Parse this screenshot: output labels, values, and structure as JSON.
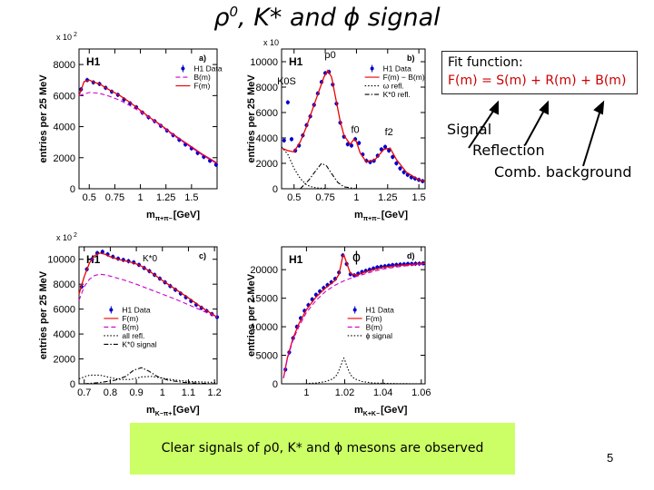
{
  "slide": {
    "title_main": "ρ",
    "title_sup": "0",
    "title_rest": ", K* and ϕ signal",
    "fit_function_label": "Fit function:",
    "fit_function_formula": "F(m) = S(m) + R(m) + B(m)",
    "term_signal": "Signal",
    "term_reflection": "Reflection",
    "term_background": "Comb. background",
    "conclusion": "Clear signals of ρ0, K* and ϕ mesons are observed",
    "page_number": "5"
  },
  "colors": {
    "data": "#0000cc",
    "fit": "#ee0000",
    "background": "#cc00cc",
    "reflection": "#000000",
    "conclusion_bg": "#ccff66",
    "formula": "#cc0000"
  },
  "chart_data": [
    {
      "id": "a",
      "type": "line",
      "panel_label": "a)",
      "experiment": "H1",
      "multiplier": "x 10",
      "multiplier_exp": "2",
      "ylabel": "entries per 25 MeV",
      "xlabel": "m",
      "xlabel_sub": "π+π−",
      "xlabel_unit": "[GeV]",
      "xlim": [
        0.4,
        1.75
      ],
      "ylim": [
        0,
        9000
      ],
      "xticks": [
        0.5,
        0.75,
        1,
        1.25,
        1.5
      ],
      "xtick_labels": [
        "0.5",
        "0.75",
        "1",
        "1.25",
        "1.5"
      ],
      "yticks": [
        0,
        2000,
        4000,
        6000,
        8000
      ],
      "ytick_labels": [
        "0",
        "2000",
        "4000",
        "6000",
        "8000"
      ],
      "legend": [
        "H1 Data",
        "B(m)",
        "F(m)"
      ],
      "series": [
        {
          "name": "H1 Data",
          "style": "points",
          "x": [
            0.42,
            0.48,
            0.54,
            0.6,
            0.66,
            0.72,
            0.78,
            0.84,
            0.9,
            0.96,
            1.02,
            1.08,
            1.14,
            1.2,
            1.26,
            1.32,
            1.38,
            1.44,
            1.5,
            1.56,
            1.62,
            1.68,
            1.74
          ],
          "y": [
            6400,
            7000,
            6850,
            6750,
            6500,
            6250,
            6050,
            5750,
            5500,
            5250,
            4900,
            4600,
            4350,
            4050,
            3750,
            3450,
            3150,
            2850,
            2600,
            2300,
            2050,
            1800,
            1550
          ]
        },
        {
          "name": "F(m)",
          "style": "line",
          "x": [
            0.4,
            0.45,
            0.5,
            0.55,
            0.6,
            0.7,
            0.8,
            0.9,
            1.0,
            1.1,
            1.2,
            1.3,
            1.4,
            1.5,
            1.6,
            1.7,
            1.75
          ],
          "y": [
            6000,
            6900,
            7000,
            6850,
            6750,
            6350,
            6000,
            5550,
            5050,
            4550,
            4100,
            3600,
            3150,
            2700,
            2250,
            1850,
            1650
          ]
        },
        {
          "name": "B(m)",
          "style": "dashed",
          "x": [
            0.4,
            0.5,
            0.6,
            0.7,
            0.8,
            0.9,
            1.0,
            1.1,
            1.2,
            1.3,
            1.4,
            1.5,
            1.6,
            1.7,
            1.75
          ],
          "y": [
            6000,
            6200,
            6150,
            5950,
            5700,
            5350,
            4950,
            4500,
            4050,
            3550,
            3100,
            2650,
            2200,
            1800,
            1600
          ]
        }
      ]
    },
    {
      "id": "b",
      "type": "line",
      "panel_label": "b)",
      "experiment": "H1",
      "multiplier": "x 10",
      "multiplier_exp": "",
      "ylabel": "entries per 25 MeV",
      "xlabel": "m",
      "xlabel_sub": "π+π−",
      "xlabel_unit": "[GeV]",
      "xlim": [
        0.4,
        1.55
      ],
      "ylim": [
        0,
        11000
      ],
      "xticks": [
        0.5,
        0.75,
        1,
        1.25,
        1.5
      ],
      "xtick_labels": [
        "0.5",
        "0.75",
        "1",
        "1.25",
        "1.5"
      ],
      "yticks": [
        0,
        2000,
        4000,
        6000,
        8000,
        10000
      ],
      "ytick_labels": [
        "0",
        "2000",
        "4000",
        "6000",
        "8000",
        "10000"
      ],
      "legend": [
        "H1 Data",
        "F(m) − B(m)",
        "ω refl.",
        "K*0 refl."
      ],
      "annotations": [
        {
          "text": "ρ0",
          "x": 0.79,
          "y": 10300
        },
        {
          "text": "K0S",
          "x": 0.44,
          "y": 8200
        },
        {
          "text": "f0",
          "x": 0.99,
          "y": 4400
        },
        {
          "text": "f2",
          "x": 1.26,
          "y": 4200
        }
      ],
      "series": [
        {
          "name": "H1 Data",
          "style": "points",
          "x": [
            0.42,
            0.45,
            0.48,
            0.51,
            0.54,
            0.57,
            0.6,
            0.63,
            0.66,
            0.69,
            0.72,
            0.75,
            0.78,
            0.81,
            0.84,
            0.87,
            0.9,
            0.93,
            0.96,
            0.99,
            1.02,
            1.05,
            1.08,
            1.11,
            1.14,
            1.17,
            1.2,
            1.23,
            1.26,
            1.29,
            1.32,
            1.35,
            1.38,
            1.41,
            1.44,
            1.47,
            1.5,
            1.53
          ],
          "y": [
            3800,
            6800,
            3900,
            3000,
            3400,
            4200,
            5000,
            5700,
            6600,
            7500,
            8400,
            9100,
            9200,
            8200,
            6700,
            5200,
            4100,
            3500,
            3400,
            3900,
            3600,
            2700,
            2200,
            2100,
            2200,
            2600,
            3100,
            3300,
            3000,
            2500,
            2000,
            1600,
            1300,
            1100,
            900,
            800,
            700,
            600
          ]
        },
        {
          "name": "F(m) − B(m)",
          "style": "line",
          "x": [
            0.4,
            0.45,
            0.5,
            0.55,
            0.6,
            0.65,
            0.7,
            0.74,
            0.77,
            0.8,
            0.83,
            0.87,
            0.9,
            0.95,
            0.98,
            1.0,
            1.03,
            1.08,
            1.15,
            1.22,
            1.27,
            1.32,
            1.4,
            1.5,
            1.55
          ],
          "y": [
            3200,
            3000,
            2900,
            3700,
            4900,
            6300,
            7700,
            8800,
            9300,
            8800,
            7300,
            5300,
            4200,
            3500,
            3900,
            3700,
            2800,
            2100,
            2300,
            3100,
            3200,
            2300,
            1300,
            700,
            600
          ]
        },
        {
          "name": "ω refl.",
          "style": "dotted",
          "x": [
            0.4,
            0.45,
            0.5,
            0.55,
            0.6,
            0.65,
            0.7,
            0.75,
            0.8
          ],
          "y": [
            3300,
            2700,
            1600,
            800,
            300,
            120,
            50,
            20,
            0
          ]
        },
        {
          "name": "K*0 refl.",
          "style": "dashdot",
          "x": [
            0.55,
            0.62,
            0.68,
            0.72,
            0.76,
            0.8,
            0.85,
            0.9,
            1.0
          ],
          "y": [
            0,
            700,
            1500,
            2000,
            1800,
            1200,
            500,
            150,
            0
          ]
        }
      ]
    },
    {
      "id": "c",
      "type": "line",
      "panel_label": "c)",
      "experiment": "H1",
      "multiplier": "x 10",
      "multiplier_exp": "2",
      "peak_label": "K*0",
      "ylabel": "entries per 25 MeV",
      "xlabel": "m",
      "xlabel_sub": "K−π+",
      "xlabel_unit": "[GeV]",
      "xlim": [
        0.68,
        1.21
      ],
      "ylim": [
        0,
        11000
      ],
      "xticks": [
        0.7,
        0.8,
        0.9,
        1,
        1.1,
        1.2
      ],
      "xtick_labels": [
        "0.7",
        "0.8",
        "0.9",
        "1",
        "1.1",
        "1.2"
      ],
      "yticks": [
        0,
        2000,
        4000,
        6000,
        8000,
        10000
      ],
      "ytick_labels": [
        "0",
        "2000",
        "4000",
        "6000",
        "8000",
        "10000"
      ],
      "legend": [
        "H1 Data",
        "F(m)",
        "B(m)",
        "all refl.",
        "K*0 signal"
      ],
      "series": [
        {
          "name": "H1 Data",
          "style": "points",
          "x": [
            0.69,
            0.71,
            0.73,
            0.75,
            0.77,
            0.79,
            0.81,
            0.83,
            0.85,
            0.87,
            0.89,
            0.91,
            0.93,
            0.95,
            0.97,
            0.99,
            1.01,
            1.03,
            1.05,
            1.07,
            1.09,
            1.11,
            1.13,
            1.15,
            1.17,
            1.19,
            1.21
          ],
          "y": [
            7800,
            9200,
            10000,
            10500,
            10600,
            10400,
            10200,
            10050,
            9950,
            9850,
            9750,
            9550,
            9300,
            9050,
            8750,
            8450,
            8150,
            7850,
            7550,
            7250,
            6950,
            6650,
            6350,
            6100,
            5850,
            5600,
            5350
          ]
        },
        {
          "name": "F(m)",
          "style": "line",
          "x": [
            0.68,
            0.7,
            0.72,
            0.74,
            0.76,
            0.78,
            0.8,
            0.83,
            0.86,
            0.89,
            0.92,
            0.95,
            1.0,
            1.05,
            1.1,
            1.15,
            1.21
          ],
          "y": [
            7200,
            8600,
            9700,
            10300,
            10500,
            10400,
            10200,
            10000,
            9850,
            9700,
            9450,
            9050,
            8300,
            7600,
            6900,
            6150,
            5350
          ]
        },
        {
          "name": "B(m)",
          "style": "dashed",
          "x": [
            0.68,
            0.7,
            0.72,
            0.74,
            0.76,
            0.78,
            0.8,
            0.85,
            0.9,
            0.95,
            1.0,
            1.05,
            1.1,
            1.15,
            1.21
          ],
          "y": [
            6700,
            7800,
            8400,
            8700,
            8800,
            8750,
            8650,
            8350,
            8000,
            7600,
            7200,
            6800,
            6350,
            5900,
            5350
          ]
        },
        {
          "name": "all refl.",
          "style": "dotted",
          "x": [
            0.68,
            0.72,
            0.76,
            0.8,
            0.84,
            0.88,
            0.92,
            0.96,
            1.0,
            1.05,
            1.1,
            1.15,
            1.21
          ],
          "y": [
            400,
            700,
            700,
            500,
            350,
            350,
            550,
            600,
            450,
            300,
            200,
            150,
            100
          ]
        },
        {
          "name": "K*0 signal",
          "style": "dashdot",
          "x": [
            0.7,
            0.76,
            0.82,
            0.86,
            0.89,
            0.92,
            0.95,
            0.98,
            1.02,
            1.08,
            1.14,
            1.21
          ],
          "y": [
            0,
            100,
            300,
            600,
            1100,
            1300,
            1000,
            600,
            300,
            120,
            50,
            0
          ]
        }
      ]
    },
    {
      "id": "d",
      "type": "line",
      "panel_label": "d)",
      "experiment": "H1",
      "peak_label": "ϕ",
      "ylabel": "entries per 2 MeV",
      "xlabel": "m",
      "xlabel_sub": "K+K−",
      "xlabel_unit": "[GeV]",
      "xlim": [
        0.987,
        1.062
      ],
      "ylim": [
        0,
        24000
      ],
      "xticks": [
        1,
        1.02,
        1.04,
        1.06
      ],
      "xtick_labels": [
        "1",
        "1.02",
        "1.04",
        "1.06"
      ],
      "yticks": [
        0,
        5000,
        10000,
        15000,
        20000
      ],
      "ytick_labels": [
        "0",
        "5000",
        "10000",
        "15000",
        "20000"
      ],
      "legend": [
        "H1 Data",
        "F(m)",
        "B(m)",
        "ϕ signal"
      ],
      "series": [
        {
          "name": "H1 Data",
          "style": "points",
          "x": [
            0.989,
            0.991,
            0.993,
            0.995,
            0.997,
            0.999,
            1.001,
            1.003,
            1.005,
            1.007,
            1.009,
            1.011,
            1.013,
            1.015,
            1.017,
            1.019,
            1.021,
            1.023,
            1.025,
            1.027,
            1.029,
            1.031,
            1.033,
            1.035,
            1.037,
            1.039,
            1.041,
            1.043,
            1.045,
            1.047,
            1.049,
            1.051,
            1.053,
            1.055,
            1.057,
            1.059,
            1.061
          ],
          "y": [
            2500,
            5500,
            8000,
            10000,
            11500,
            12800,
            13800,
            14800,
            15600,
            16200,
            16800,
            17300,
            17800,
            18400,
            19500,
            22500,
            21000,
            19200,
            19000,
            19300,
            19600,
            19800,
            20000,
            20200,
            20400,
            20500,
            20600,
            20700,
            20800,
            20850,
            20900,
            20950,
            21000,
            21000,
            21050,
            21050,
            21100
          ]
        },
        {
          "name": "F(m)",
          "style": "line",
          "x": [
            0.988,
            0.99,
            0.993,
            0.996,
            1.0,
            1.005,
            1.01,
            1.015,
            1.017,
            1.019,
            1.0195,
            1.021,
            1.023,
            1.026,
            1.03,
            1.035,
            1.04,
            1.05,
            1.062
          ],
          "y": [
            1000,
            4500,
            8000,
            10500,
            13000,
            15200,
            16800,
            18100,
            19200,
            22400,
            22600,
            21200,
            19300,
            19000,
            19500,
            20000,
            20400,
            20800,
            21100
          ]
        },
        {
          "name": "B(m)",
          "style": "dashed",
          "x": [
            0.988,
            0.99,
            0.993,
            0.996,
            1.0,
            1.005,
            1.01,
            1.015,
            1.02,
            1.025,
            1.03,
            1.035,
            1.04,
            1.05,
            1.062
          ],
          "y": [
            1000,
            4300,
            7700,
            10000,
            12500,
            14600,
            16200,
            17300,
            18100,
            18700,
            19200,
            19700,
            20100,
            20600,
            21000
          ]
        },
        {
          "name": "ϕ signal",
          "style": "dotted",
          "x": [
            0.998,
            1.005,
            1.01,
            1.014,
            1.016,
            1.018,
            1.019,
            1.0195,
            1.02,
            1.021,
            1.023,
            1.025,
            1.029,
            1.035,
            1.045,
            1.06
          ],
          "y": [
            0,
            150,
            400,
            900,
            1600,
            3200,
            4200,
            4500,
            4200,
            3200,
            1600,
            900,
            400,
            150,
            50,
            0
          ]
        }
      ]
    }
  ]
}
